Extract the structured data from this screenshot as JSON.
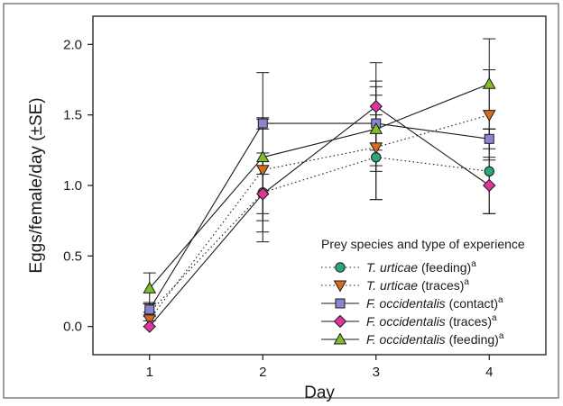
{
  "chart_data": {
    "type": "line",
    "xlabel": "Day",
    "ylabel": "Eggs/female/day (±SE)",
    "x": [
      1,
      2,
      3,
      4
    ],
    "xticks": [
      "1",
      "2",
      "3",
      "4"
    ],
    "xlim": [
      0.5,
      4.5
    ],
    "ylim": [
      -0.2,
      2.2
    ],
    "yticks": [
      "0.0",
      "0.5",
      "1.0",
      "1.5",
      "2.0"
    ],
    "legend": {
      "title": "Prey species and type of experience",
      "placement": "bottom-right"
    },
    "series": [
      {
        "name_italic": "T. urticae",
        "name_rest": " (feeding)",
        "superscript": "a",
        "marker": "circle",
        "line": "dotted",
        "color": "#2aa77a",
        "values": [
          0.1,
          0.95,
          1.2,
          1.1
        ],
        "se": [
          0.06,
          0.28,
          0.3,
          0.3
        ]
      },
      {
        "name_italic": "T. urticae",
        "name_rest": " (traces)",
        "superscript": "a",
        "marker": "triangle-down",
        "line": "dotted",
        "color": "#d9691c",
        "values": [
          0.05,
          1.11,
          1.27,
          1.5
        ],
        "se": [
          0.05,
          0.36,
          0.37,
          0.32
        ]
      },
      {
        "name_italic": "F. occidentalis",
        "name_rest": " (contact)",
        "superscript": "a",
        "marker": "square",
        "line": "solid",
        "color": "#8a85d0",
        "values": [
          0.12,
          1.44,
          1.44,
          1.33
        ],
        "se": [
          0.05,
          0.04,
          0.3,
          0.07
        ]
      },
      {
        "name_italic": "F. occidentalis",
        "name_rest": " (traces)",
        "superscript": "a",
        "marker": "diamond",
        "line": "solid",
        "color": "#e0359b",
        "values": [
          0.0,
          0.94,
          1.56,
          1.0
        ],
        "se": [
          0.0,
          0.14,
          0.31,
          0.2
        ]
      },
      {
        "name_italic": "F. occidentalis",
        "name_rest": " (feeding)",
        "superscript": "a",
        "marker": "triangle-up",
        "line": "solid",
        "color": "#7fbf2a",
        "values": [
          0.27,
          1.2,
          1.4,
          1.72
        ],
        "se": [
          0.11,
          0.6,
          0.3,
          0.32
        ]
      }
    ]
  }
}
